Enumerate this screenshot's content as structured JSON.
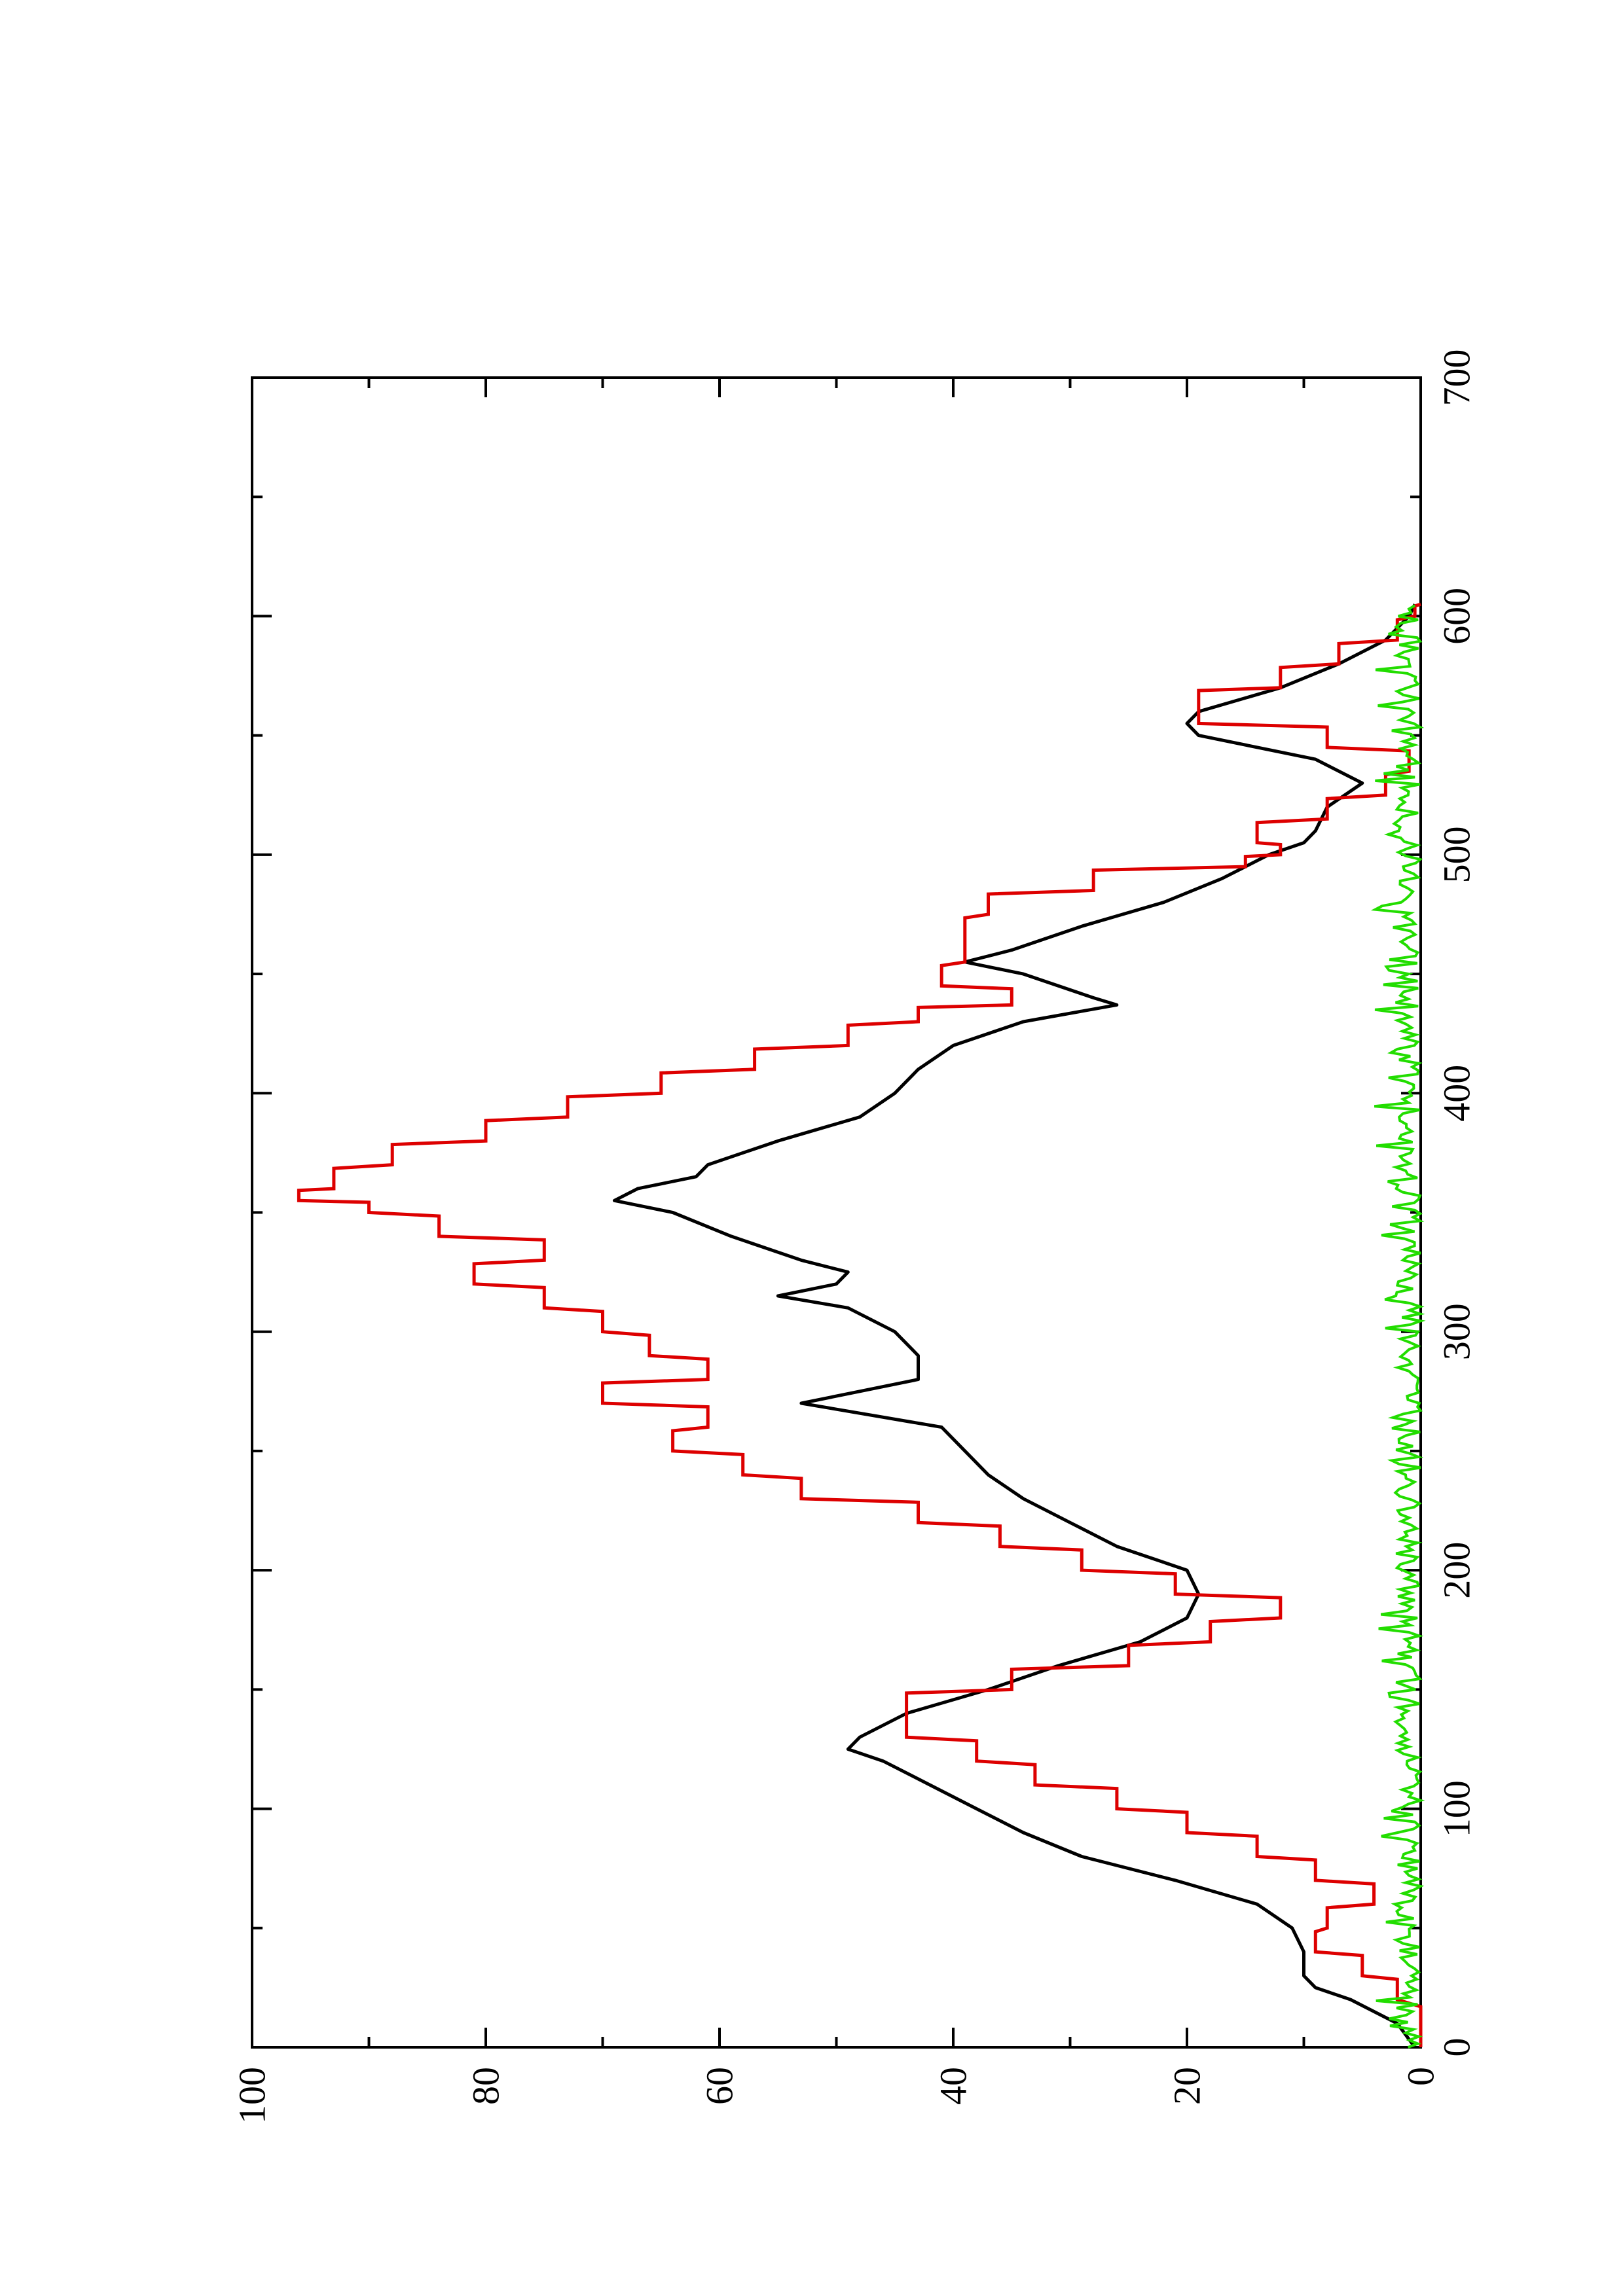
{
  "chart_data": {
    "type": "line",
    "title": "",
    "xlabel": "",
    "ylabel": "",
    "xlim": [
      0,
      700
    ],
    "ylim": [
      0,
      100
    ],
    "x_ticks": [
      0,
      100,
      200,
      300,
      400,
      500,
      600,
      700
    ],
    "y_ticks": [
      0,
      20,
      40,
      60,
      80,
      100
    ],
    "grid": false,
    "legend": "none",
    "orientation": "rotated 90 degrees counter-clockwise (x axis runs bottom-to-top along the right edge)",
    "series": [
      {
        "color": "#000000",
        "style": "smooth line",
        "x": [
          0,
          10,
          20,
          25,
          30,
          40,
          50,
          60,
          70,
          80,
          90,
          100,
          110,
          120,
          125,
          130,
          140,
          150,
          160,
          170,
          180,
          190,
          200,
          205,
          210,
          220,
          230,
          240,
          250,
          260,
          270,
          275,
          280,
          290,
          300,
          310,
          315,
          320,
          325,
          330,
          340,
          350,
          355,
          360,
          365,
          370,
          380,
          390,
          400,
          410,
          420,
          430,
          437,
          440,
          450,
          455,
          460,
          470,
          480,
          490,
          495,
          500,
          505,
          510,
          520,
          530,
          540,
          550,
          555,
          560,
          570,
          580,
          590,
          600,
          605
        ],
        "y": [
          0.5,
          2,
          6,
          9,
          10,
          10,
          11,
          14,
          21,
          29,
          34,
          38,
          42,
          46,
          49,
          48,
          44,
          37,
          31,
          24,
          20,
          19,
          20,
          23,
          26,
          30,
          34,
          37,
          39,
          41,
          53,
          48,
          43,
          43,
          45,
          49,
          55,
          50,
          49,
          53,
          59,
          64,
          69,
          67,
          62,
          61,
          55,
          48,
          45,
          43,
          40,
          34,
          26,
          28,
          34,
          39,
          35,
          29,
          22,
          17,
          15,
          13,
          10,
          9,
          8,
          5,
          9,
          19,
          20,
          19,
          12,
          7,
          3,
          1,
          0.5
        ]
      },
      {
        "color": "#dd0000",
        "style": "stepped line",
        "x": [
          0,
          20,
          30,
          40,
          50,
          60,
          70,
          80,
          90,
          100,
          110,
          120,
          130,
          140,
          150,
          160,
          170,
          180,
          190,
          200,
          210,
          220,
          230,
          240,
          250,
          260,
          270,
          280,
          290,
          300,
          310,
          320,
          330,
          340,
          350,
          355,
          360,
          370,
          380,
          390,
          400,
          410,
          420,
          430,
          437,
          445,
          455,
          465,
          475,
          485,
          495,
          500,
          505,
          515,
          525,
          535,
          545,
          555,
          562,
          570,
          580,
          590,
          600,
          605
        ],
        "y": [
          0,
          2,
          5,
          9,
          8,
          4,
          9,
          14,
          20,
          26,
          33,
          38,
          44,
          44,
          35,
          25,
          18,
          12,
          21,
          29,
          36,
          43,
          53,
          58,
          64,
          61,
          70,
          61,
          66,
          70,
          75,
          81,
          75,
          84,
          90,
          96,
          93,
          88,
          80,
          73,
          65,
          57,
          49,
          43,
          35,
          41,
          39,
          39,
          37,
          28,
          15,
          12,
          14,
          8,
          3,
          1,
          8,
          19,
          19,
          12,
          7,
          2,
          0.5,
          0
        ]
      },
      {
        "color": "#22dd00",
        "style": "noisy line",
        "x_range": [
          0,
          605
        ],
        "y_range": [
          0,
          4
        ],
        "description": "low noisy baseline fluctuating between about 0 and 4 across the whole x range"
      }
    ]
  }
}
